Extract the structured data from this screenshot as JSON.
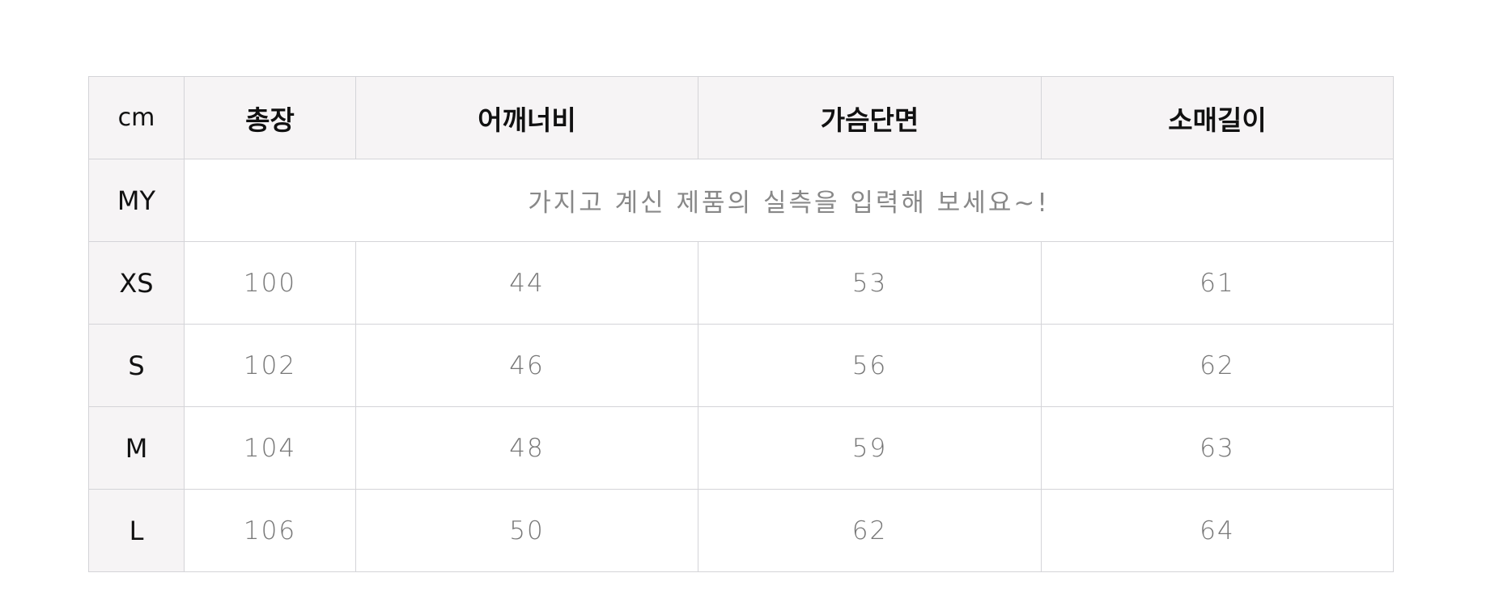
{
  "table": {
    "unit_label": "cm",
    "columns": [
      "총장",
      "어깨너비",
      "가슴단면",
      "소매길이"
    ],
    "my_row": {
      "label": "MY",
      "note": "가지고 계신 제품의 실측을 입력해 보세요~!"
    },
    "rows": [
      {
        "size": "XS",
        "values": [
          "100",
          "44",
          "53",
          "61"
        ]
      },
      {
        "size": "S",
        "values": [
          "102",
          "46",
          "56",
          "62"
        ]
      },
      {
        "size": "M",
        "values": [
          "104",
          "48",
          "59",
          "63"
        ]
      },
      {
        "size": "L",
        "values": [
          "106",
          "50",
          "62",
          "64"
        ]
      }
    ]
  }
}
